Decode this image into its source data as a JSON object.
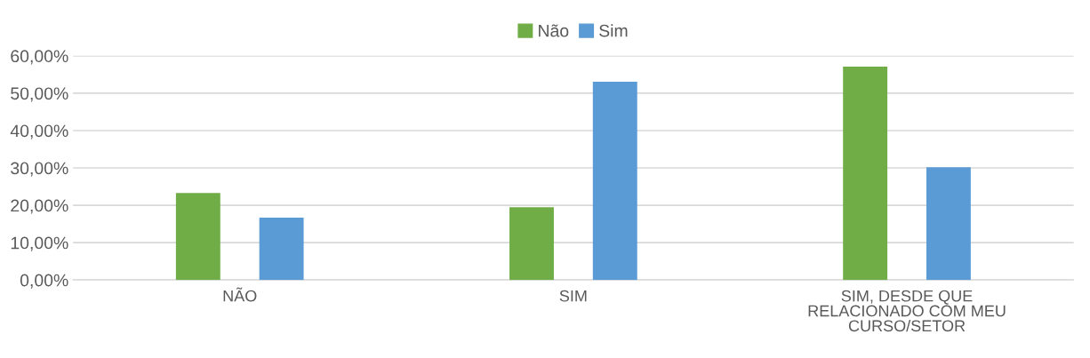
{
  "chart_data": {
    "type": "bar",
    "categories": [
      "NÃO",
      "SIM",
      "SIM, DESDE QUE\nRELACIONADO COM MEU\nCURSO/SETOR"
    ],
    "series": [
      {
        "name": "Não",
        "color": "#70ad47",
        "values": [
          23.3,
          19.5,
          57.1
        ]
      },
      {
        "name": "Sim",
        "color": "#5b9bd5",
        "values": [
          16.7,
          53.1,
          30.2
        ]
      }
    ],
    "ylim": [
      0,
      60
    ],
    "yticks": [
      {
        "value": 0,
        "label": "0,00%"
      },
      {
        "value": 10,
        "label": "10,00%"
      },
      {
        "value": 20,
        "label": "20,00%"
      },
      {
        "value": 30,
        "label": "30,00%"
      },
      {
        "value": 40,
        "label": "40,00%"
      },
      {
        "value": 50,
        "label": "50,00%"
      },
      {
        "value": 60,
        "label": "60,00%"
      }
    ],
    "grid": "y",
    "legend": "top"
  }
}
